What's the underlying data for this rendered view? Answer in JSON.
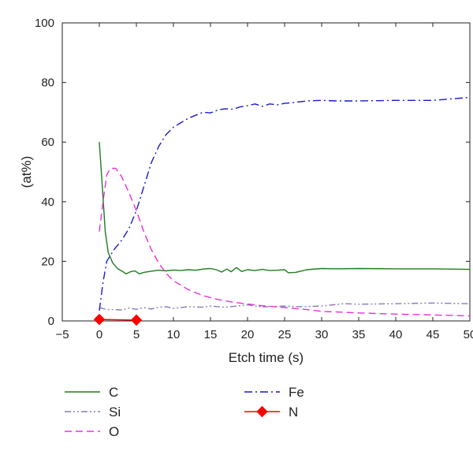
{
  "chart_data": {
    "type": "line",
    "title": "",
    "xlabel": "Etch time (s)",
    "ylabel": "(at%)",
    "xlim": [
      -5,
      50
    ],
    "ylim": [
      0,
      100
    ],
    "xticks": [
      -5,
      0,
      5,
      10,
      15,
      20,
      25,
      30,
      35,
      40,
      45,
      50
    ],
    "yticks": [
      0,
      20,
      40,
      60,
      80,
      100
    ],
    "grid": false,
    "legend_position": "bottom",
    "series": [
      {
        "name": "C",
        "color": "#1e7d1e",
        "style": "solid",
        "marker": "none",
        "points": [
          [
            0,
            60
          ],
          [
            0.4,
            45
          ],
          [
            0.8,
            30
          ],
          [
            1.2,
            23
          ],
          [
            1.8,
            19.5
          ],
          [
            2.5,
            17.5
          ],
          [
            3.2,
            16.5
          ],
          [
            3.6,
            15.8
          ],
          [
            4.2,
            16.5
          ],
          [
            4.8,
            16.8
          ],
          [
            5.4,
            15.8
          ],
          [
            6,
            16.3
          ],
          [
            7,
            16.7
          ],
          [
            8,
            17
          ],
          [
            9,
            16.8
          ],
          [
            10,
            17.1
          ],
          [
            11,
            16.9
          ],
          [
            12,
            17.2
          ],
          [
            13,
            17
          ],
          [
            14,
            17.4
          ],
          [
            15,
            17.6
          ],
          [
            15.8,
            17.2
          ],
          [
            16.5,
            16.4
          ],
          [
            17.2,
            17.4
          ],
          [
            17.8,
            16.5
          ],
          [
            18.5,
            17.9
          ],
          [
            19.2,
            16.6
          ],
          [
            20,
            17.2
          ],
          [
            21,
            16.9
          ],
          [
            22,
            17.3
          ],
          [
            23,
            16.9
          ],
          [
            24,
            17
          ],
          [
            25,
            17.2
          ],
          [
            25.5,
            16.2
          ],
          [
            26.5,
            16.3
          ],
          [
            28,
            17.2
          ],
          [
            30,
            17.6
          ],
          [
            32,
            17.5
          ],
          [
            35,
            17.6
          ],
          [
            40,
            17.5
          ],
          [
            45,
            17.5
          ],
          [
            50,
            17.3
          ]
        ]
      },
      {
        "name": "Si",
        "color": "#8a7ab8",
        "style": "dashdotdot",
        "marker": "none",
        "points": [
          [
            0,
            4.5
          ],
          [
            1,
            3.8
          ],
          [
            2,
            3.8
          ],
          [
            3,
            3.7
          ],
          [
            4,
            4.3
          ],
          [
            5,
            3.9
          ],
          [
            6,
            4.5
          ],
          [
            7,
            4
          ],
          [
            8,
            4.6
          ],
          [
            9,
            4.8
          ],
          [
            10,
            4.2
          ],
          [
            12,
            4.8
          ],
          [
            14,
            4.6
          ],
          [
            15,
            5
          ],
          [
            17,
            4.6
          ],
          [
            19,
            5.1
          ],
          [
            20,
            5.4
          ],
          [
            22,
            4.7
          ],
          [
            25,
            5
          ],
          [
            27,
            4.8
          ],
          [
            30,
            5
          ],
          [
            33,
            5.8
          ],
          [
            35,
            5.6
          ],
          [
            40,
            5.8
          ],
          [
            45,
            6
          ],
          [
            50,
            5.8
          ]
        ]
      },
      {
        "name": "O",
        "color": "#e830d8",
        "style": "dashed",
        "marker": "none",
        "points": [
          [
            0,
            30
          ],
          [
            0.5,
            40
          ],
          [
            1,
            49
          ],
          [
            1.5,
            51.2
          ],
          [
            2.2,
            51.2
          ],
          [
            3,
            48.5
          ],
          [
            4,
            43
          ],
          [
            5,
            37
          ],
          [
            6,
            30
          ],
          [
            7,
            24
          ],
          [
            8,
            19.5
          ],
          [
            9,
            16
          ],
          [
            10,
            13.5
          ],
          [
            12,
            10.5
          ],
          [
            14,
            8.5
          ],
          [
            16,
            7.2
          ],
          [
            18,
            6.3
          ],
          [
            20,
            5.7
          ],
          [
            22,
            5.1
          ],
          [
            25,
            4.5
          ],
          [
            28,
            3.8
          ],
          [
            30,
            3.2
          ],
          [
            35,
            2.7
          ],
          [
            40,
            2.3
          ],
          [
            45,
            2
          ],
          [
            50,
            1.7
          ]
        ]
      },
      {
        "name": "Fe",
        "color": "#1a1ac8",
        "style": "dashdot",
        "marker": "none",
        "points": [
          [
            0,
            3.5
          ],
          [
            0.5,
            13
          ],
          [
            1,
            20
          ],
          [
            2,
            24
          ],
          [
            3,
            27
          ],
          [
            4,
            31
          ],
          [
            5,
            37
          ],
          [
            6,
            45
          ],
          [
            7,
            53
          ],
          [
            8,
            58.5
          ],
          [
            9,
            62.5
          ],
          [
            10,
            65
          ],
          [
            11,
            66.5
          ],
          [
            12,
            68
          ],
          [
            13,
            69
          ],
          [
            14,
            70
          ],
          [
            15,
            69.8
          ],
          [
            16,
            70.8
          ],
          [
            17,
            71.2
          ],
          [
            18,
            71
          ],
          [
            19,
            71.8
          ],
          [
            20,
            72.2
          ],
          [
            21,
            72.8
          ],
          [
            22,
            72
          ],
          [
            23,
            72.8
          ],
          [
            24,
            72.5
          ],
          [
            25,
            73
          ],
          [
            26,
            73.2
          ],
          [
            28,
            73.8
          ],
          [
            30,
            74
          ],
          [
            32,
            73.8
          ],
          [
            35,
            73.8
          ],
          [
            40,
            74
          ],
          [
            45,
            74
          ],
          [
            50,
            75
          ]
        ]
      },
      {
        "name": "N",
        "color": "#ff0000",
        "style": "solid",
        "marker": "diamond",
        "points": [
          [
            0,
            0.5
          ],
          [
            5,
            0.3
          ]
        ]
      }
    ]
  }
}
